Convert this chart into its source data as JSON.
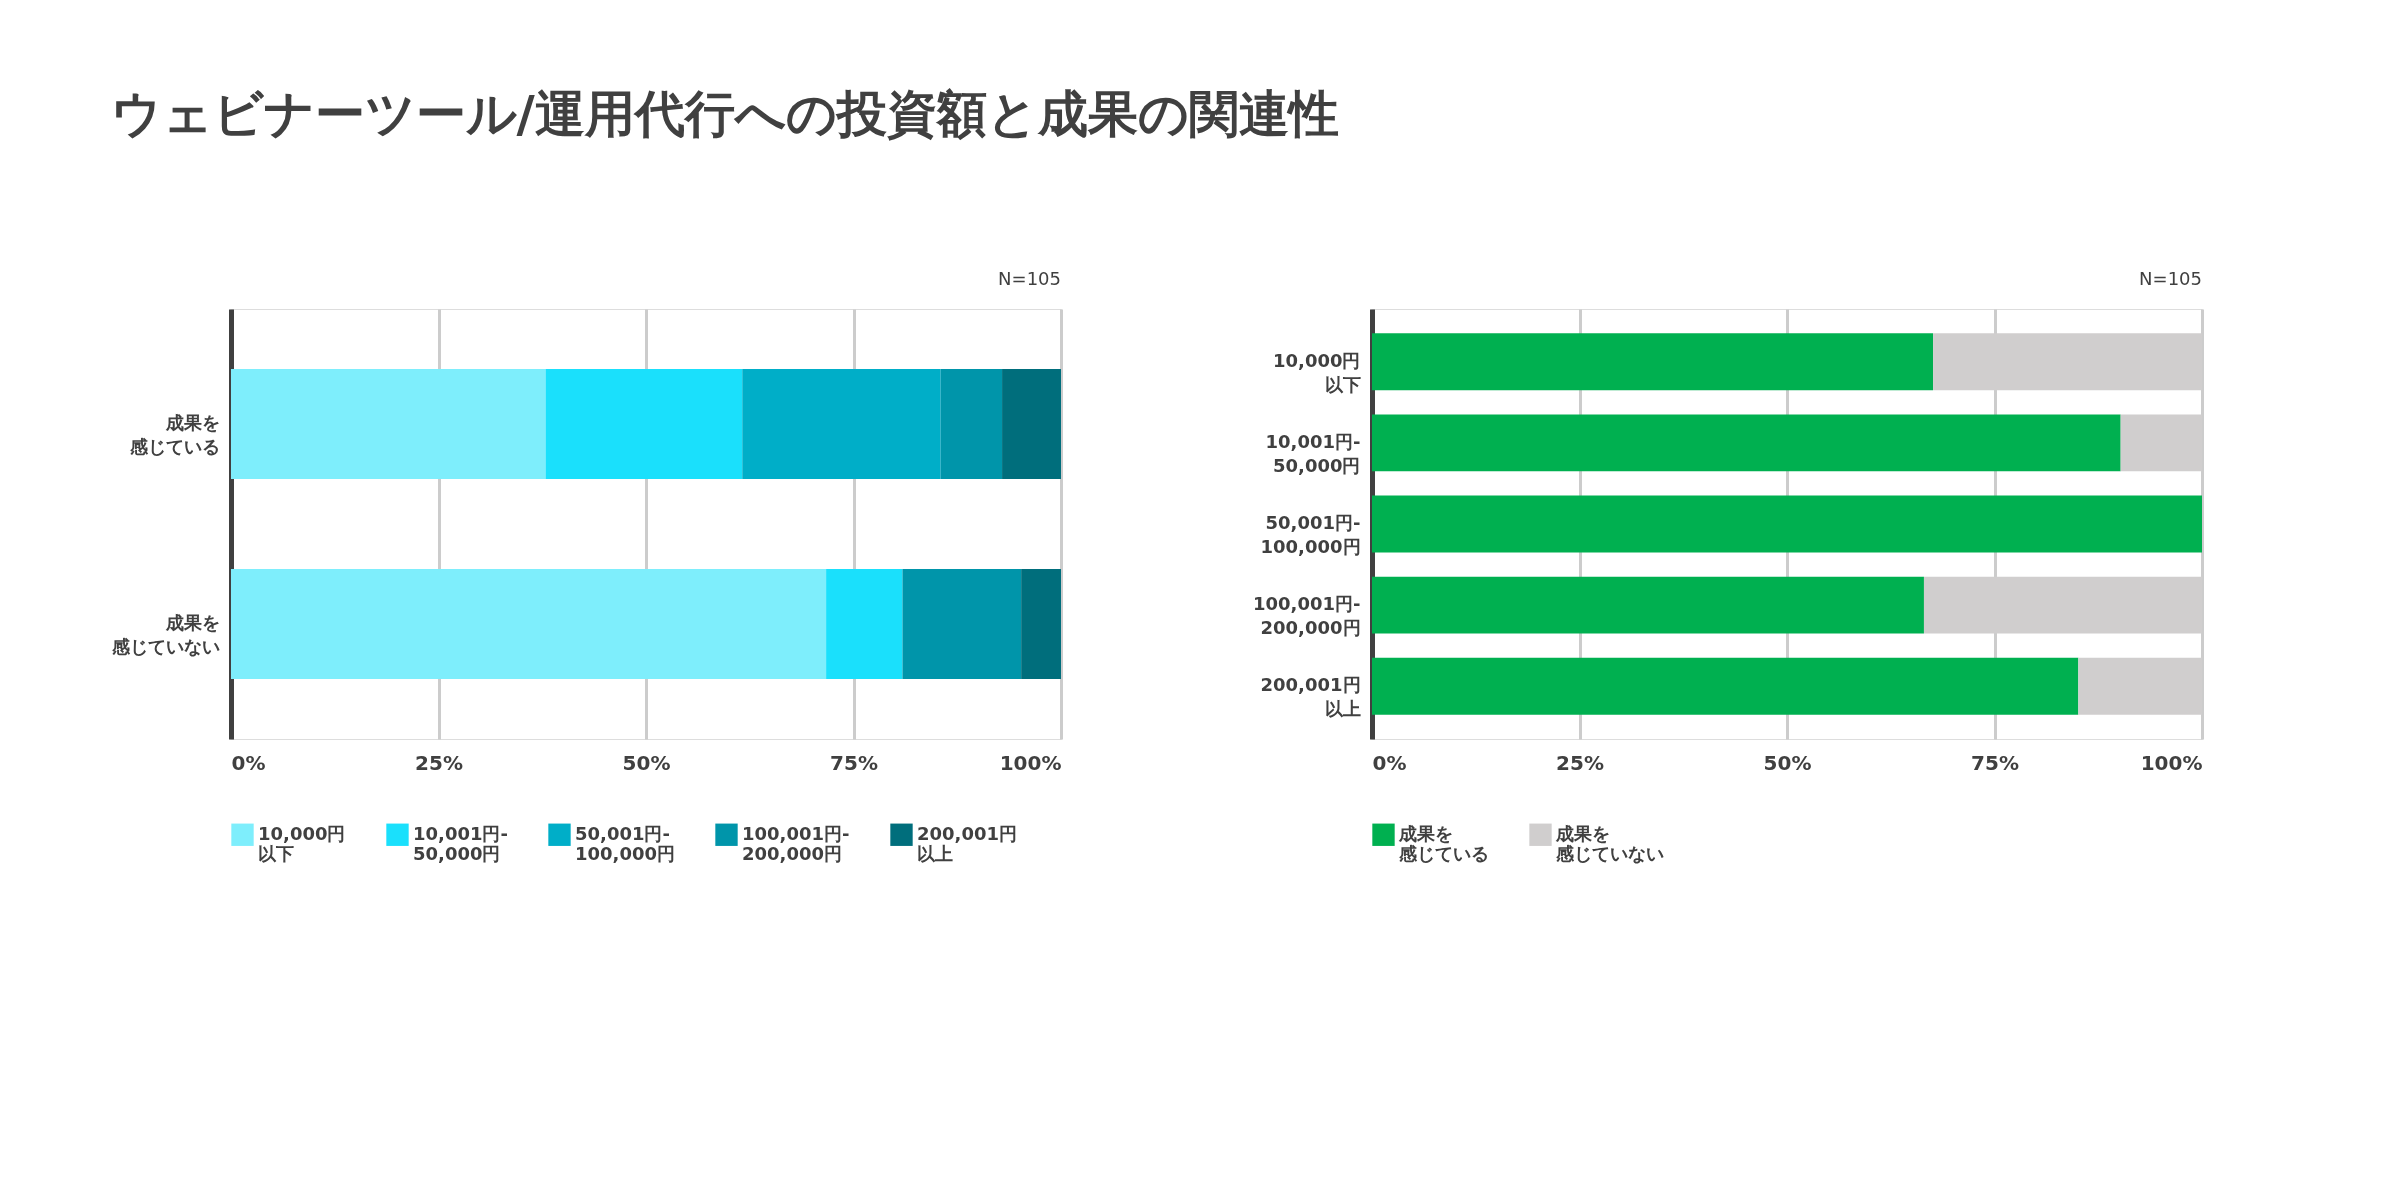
{
  "chart_data": [
    {
      "type": "bar",
      "title": "ウェビナーツール/運用代行への投資額と成果の関連性",
      "orientation": "horizontal",
      "stacked": true,
      "categories": [
        "成果を感じている",
        "成果を感じていない"
      ],
      "series": [
        {
          "name": "10,000円以下",
          "color": "#7eeefc",
          "values": [
            37.9,
            71.7
          ]
        },
        {
          "name": "10,001円-50,000円",
          "color": "#1ae0fc",
          "values": [
            23.7,
            9.2
          ]
        },
        {
          "name": "50,001円-100,000円",
          "color": "#00aec8",
          "values": [
            23.9,
            0
          ]
        },
        {
          "name": "100,001円-200,000円",
          "color": "#0095aa",
          "values": [
            7.4,
            14.3
          ]
        },
        {
          "name": "200,001円以上",
          "color": "#006e7c",
          "values": [
            7.1,
            4.8
          ]
        }
      ],
      "xlim": [
        0,
        100
      ],
      "xticks": [
        {
          "value": 0,
          "label": "0%"
        },
        {
          "value": 25,
          "label": "25%"
        },
        {
          "value": 50,
          "label": "50%"
        },
        {
          "value": 75,
          "label": "75%"
        },
        {
          "value": 100,
          "label": "100%"
        }
      ],
      "grid": "x",
      "legend": "bottom",
      "annotations": [
        "N=105"
      ]
    },
    {
      "type": "bar",
      "orientation": "horizontal",
      "stacked": true,
      "categories": [
        "10,000円以下",
        "10,001円-50,000円",
        "50,001円-100,000円",
        "100,001円-200,000円",
        "200,001円以上"
      ],
      "series": [
        {
          "name": "成果を感じている",
          "color": "#00b050",
          "values": [
            67.6,
            90.2,
            100,
            66.5,
            85.1
          ]
        },
        {
          "name": "成果を感じていない",
          "color": "#d0cece",
          "values": [
            32.4,
            9.8,
            0,
            33.5,
            14.9
          ]
        }
      ],
      "xlim": [
        0,
        100
      ],
      "xticks": [
        {
          "value": 0,
          "label": "0%"
        },
        {
          "value": 25,
          "label": "25%"
        },
        {
          "value": 50,
          "label": "50%"
        },
        {
          "value": 75,
          "label": "75%"
        },
        {
          "value": 100,
          "label": "100%"
        }
      ],
      "grid": "x",
      "legend": "bottom",
      "annotations": [
        "N=105"
      ]
    }
  ]
}
